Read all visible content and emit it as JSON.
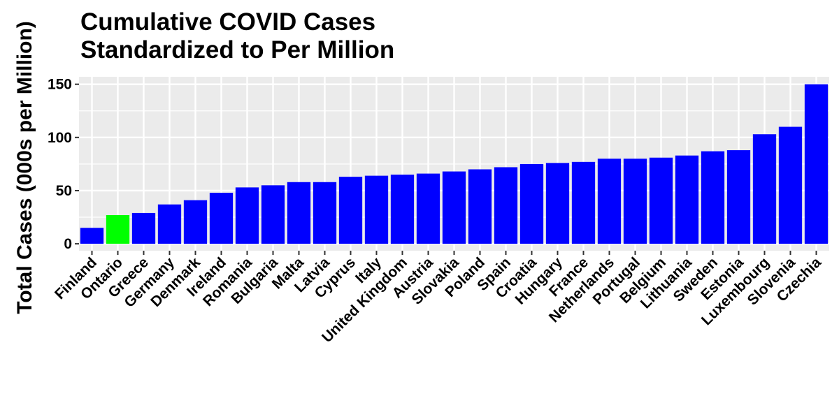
{
  "chart_data": {
    "type": "bar",
    "title": [
      "Cumulative COVID Cases",
      "Standardized to Per Million"
    ],
    "xlabel": "",
    "ylabel": "Total Cases (000s per Million)",
    "ylim": [
      -6.5,
      157
    ],
    "yticks": [
      0,
      50,
      100,
      150
    ],
    "grid": true,
    "categories": [
      "Finland",
      "Ontario",
      "Greece",
      "Germany",
      "Denmark",
      "Ireland",
      "Romania",
      "Bulgaria",
      "Malta",
      "Latvia",
      "Cyprus",
      "Italy",
      "United Kingdom",
      "Austria",
      "Slovakia",
      "Poland",
      "Spain",
      "Croatia",
      "Hungary",
      "France",
      "Netherlands",
      "Portugal",
      "Belgium",
      "Lithuania",
      "Sweden",
      "Estonia",
      "Luxembourg",
      "Slovenia",
      "Czechia"
    ],
    "values": [
      15,
      27,
      29,
      37,
      41,
      48,
      53,
      55,
      58,
      58,
      63,
      64,
      65,
      66,
      68,
      70,
      72,
      75,
      76,
      77,
      80,
      80,
      81,
      83,
      87,
      88,
      103,
      110,
      150
    ],
    "colors": [
      "#0000ff",
      "#00ff00",
      "#0000ff",
      "#0000ff",
      "#0000ff",
      "#0000ff",
      "#0000ff",
      "#0000ff",
      "#0000ff",
      "#0000ff",
      "#0000ff",
      "#0000ff",
      "#0000ff",
      "#0000ff",
      "#0000ff",
      "#0000ff",
      "#0000ff",
      "#0000ff",
      "#0000ff",
      "#0000ff",
      "#0000ff",
      "#0000ff",
      "#0000ff",
      "#0000ff",
      "#0000ff",
      "#0000ff",
      "#0000ff",
      "#0000ff",
      "#0000ff"
    ],
    "panel_background": "#ebebeb",
    "gridline_color": "#ffffff"
  }
}
